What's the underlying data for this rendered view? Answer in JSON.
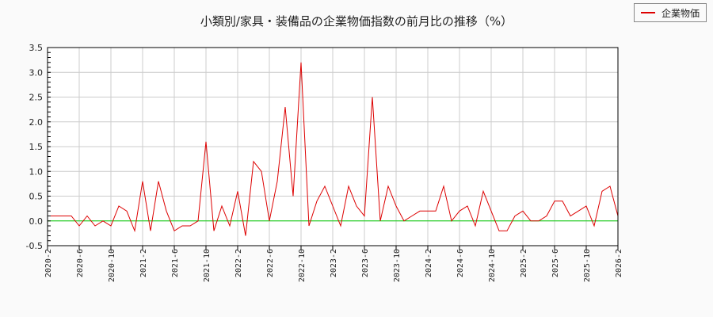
{
  "title": "小類別/家具・装備品の企業物価指数の前月比の推移（%）",
  "legend": {
    "label": "企業物価",
    "color": "#dd0000"
  },
  "colors": {
    "series": "#dd0000",
    "zero_line": "#00cc00",
    "grid": "#cccccc",
    "plot_bg": "#ffffff",
    "page_bg": "#fafafa"
  },
  "chart_data": {
    "type": "line",
    "title": "小類別/家具・装備品の企業物価指数の前月比の推移（%）",
    "xlabel": "",
    "ylabel": "",
    "ylim": [
      -0.5,
      3.5
    ],
    "yticks": [
      "-0.5",
      "0.0",
      "0.5",
      "1.0",
      "1.5",
      "2.0",
      "2.5",
      "3.0",
      "3.5"
    ],
    "xticks": [
      "2020-2",
      "2020-6",
      "2020-10",
      "2021-2",
      "2021-6",
      "2021-10",
      "2022-2",
      "2022-6",
      "2022-10",
      "2023-2",
      "2023-6",
      "2023-10",
      "2024-2",
      "2024-6",
      "2024-10",
      "2025-2",
      "2025-6",
      "2025-10",
      "2026-2"
    ],
    "grid": true,
    "legend_position": "top-right",
    "x_start": "2020-2",
    "x_end": "2026-2",
    "series": [
      {
        "name": "企業物価",
        "values": [
          0.1,
          0.1,
          0.1,
          0.1,
          -0.1,
          0.1,
          -0.1,
          0.0,
          -0.1,
          0.3,
          0.2,
          -0.2,
          0.8,
          -0.2,
          0.8,
          0.2,
          -0.2,
          -0.1,
          -0.1,
          0.0,
          1.6,
          -0.2,
          0.3,
          -0.1,
          0.6,
          -0.3,
          1.2,
          1.0,
          0.0,
          0.8,
          2.3,
          0.5,
          3.2,
          -0.1,
          0.4,
          0.7,
          0.3,
          -0.1,
          0.7,
          0.3,
          0.1,
          2.5,
          0.0,
          0.7,
          0.3,
          0.0,
          0.1,
          0.2,
          0.2,
          0.2,
          0.7,
          0.0,
          0.2,
          0.3,
          -0.1,
          0.6,
          0.2,
          -0.2,
          -0.2,
          0.1,
          0.2,
          0.0,
          0.0,
          0.1,
          0.4,
          0.4,
          0.1,
          0.2,
          0.3,
          -0.1,
          0.6,
          0.7,
          0.1
        ]
      }
    ],
    "reference_line": {
      "y": 0.0,
      "color": "#00cc00"
    }
  }
}
